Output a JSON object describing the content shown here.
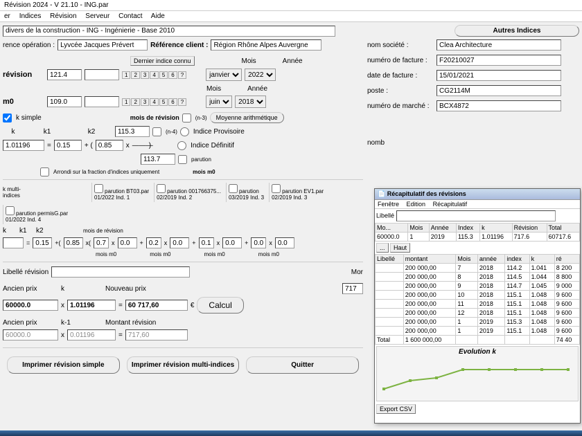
{
  "title": "Révision 2024 - V 21.10 - ING.par",
  "menu": [
    "er",
    "Indices",
    "Révision",
    "Serveur",
    "Contact",
    "Aide"
  ],
  "header_index": "divers de la construction - ING - Ingénierie - Base 2010",
  "btn_autres": "Autres Indices",
  "ref_op_lbl": "rence opération :",
  "ref_op_val": "Lyvcée Jacques Prévert",
  "ref_client_lbl": "Référence client :",
  "ref_client_val": "Région Rhône Alpes Auvergne",
  "dernier_indice": "Dernier indice connu",
  "mois_lbl": "Mois",
  "annee_lbl": "Année",
  "revision_lbl": "révision",
  "revision_val": "121.4",
  "revision_mois": "janvier",
  "revision_annee": "2022",
  "m0_lbl": "m0",
  "m0_val": "109.0",
  "m0_mois": "juin",
  "m0_annee": "2018",
  "k_simple": "k simple",
  "mois_revision": "mois de révision",
  "moyenne": "Moyenne arithmétique",
  "k_lbl": "k",
  "k1_lbl": "k1",
  "k2_lbl": "k2",
  "k_result": "1.01196",
  "k1_val": "0.15",
  "k2_val": "0.85",
  "idx_top": "115.3",
  "idx_bot": "113.7",
  "indice_prov": "Indice Provisoire",
  "indice_def": "Indice Définitif",
  "arrondi": "Arrondi sur la fraction d'indices uniquement",
  "mois_m0": "mois m0",
  "parution": "parution",
  "k_multi": "k multi-indices",
  "multi_cols": [
    {
      "file": "BT03.par",
      "date": "01/2022",
      "ind": "Ind. 1"
    },
    {
      "file": "001766375...",
      "date": "02/2019",
      "ind": "Ind. 2"
    },
    {
      "file": "",
      "date": "03/2019",
      "ind": "Ind. 3"
    },
    {
      "file": "EV1.par",
      "date": "02/2019",
      "ind": "Ind. 3"
    },
    {
      "file": "permisG.par",
      "date": "01/2022",
      "ind": "Ind. 4"
    }
  ],
  "libelle_rev": "Libellé révision",
  "ancien_prix": "Ancien prix",
  "nouveau_prix": "Nouveau prix",
  "ancien_val": "60000.0",
  "k_calc": "1.01196",
  "nouveau_val": "60 717,60",
  "euro": "€",
  "calcul": "Calcul",
  "k_minus_1": "k-1",
  "k_minus_1_val": "0.01196",
  "montant_rev": "Montant révision",
  "montant_val": "717,60",
  "btn_print_simple": "Imprimer révision simple",
  "btn_print_multi": "Imprimer révision multi-indices",
  "btn_quit": "Quitter",
  "info": {
    "nom_societe_lbl": "nom société :",
    "nom_societe": "Clea Architecture",
    "num_facture_lbl": "numéro de facture :",
    "num_facture": "F20210027",
    "date_facture_lbl": "date de facture :",
    "date_facture": "15/01/2021",
    "poste_lbl": "poste :",
    "poste": "CG2114M",
    "num_marche_lbl": "numéro de marché :",
    "num_marche": "BCX4872",
    "nombre_lbl": "nomb"
  },
  "mor_lbl": "Mor",
  "mor_val": "717",
  "popup": {
    "title": "Récapitulatif des révisions",
    "menu": [
      "Fenêtre",
      "Edition",
      "Récapitulatif"
    ],
    "libelle": "Libellé",
    "haut": "Haut",
    "top_headers": [
      "Mo...",
      "Mois",
      "Année",
      "Index",
      "k",
      "Révision",
      "Total"
    ],
    "top_row": [
      "60000.0",
      "1",
      "2019",
      "115.3",
      "1.01196",
      "717.6",
      "60717.6"
    ],
    "headers": [
      "Libellé",
      "montant",
      "Mois",
      "année",
      "index",
      "k",
      "ré"
    ],
    "rows": [
      [
        "",
        "200 000,00",
        "7",
        "2018",
        "114.2",
        "1.041",
        "8 200"
      ],
      [
        "",
        "200 000,00",
        "8",
        "2018",
        "114.5",
        "1.044",
        "8 800"
      ],
      [
        "",
        "200 000,00",
        "9",
        "2018",
        "114.7",
        "1.045",
        "9 000"
      ],
      [
        "",
        "200 000,00",
        "10",
        "2018",
        "115.1",
        "1.048",
        "9 600"
      ],
      [
        "",
        "200 000,00",
        "11",
        "2018",
        "115.1",
        "1.048",
        "9 600"
      ],
      [
        "",
        "200 000,00",
        "12",
        "2018",
        "115.1",
        "1.048",
        "9 600"
      ],
      [
        "",
        "200 000,00",
        "1",
        "2019",
        "115.3",
        "1.048",
        "9 600"
      ],
      [
        "",
        "200 000,00",
        "1",
        "2019",
        "115.1",
        "1.048",
        "9 600"
      ]
    ],
    "total_row": [
      "Total",
      "1 600 000,00",
      "",
      "",
      "",
      "",
      "74 40"
    ],
    "chart_title": "Evolution k",
    "chart_y": [
      1.041,
      1.044,
      1.045,
      1.048,
      1.048,
      1.048,
      1.048,
      1.048
    ],
    "chart_color": "#7db342",
    "chart_range": [
      1.04,
      1.05
    ],
    "export": "Export CSV"
  },
  "n3": "(n-3)",
  "n4": "(n-4)"
}
